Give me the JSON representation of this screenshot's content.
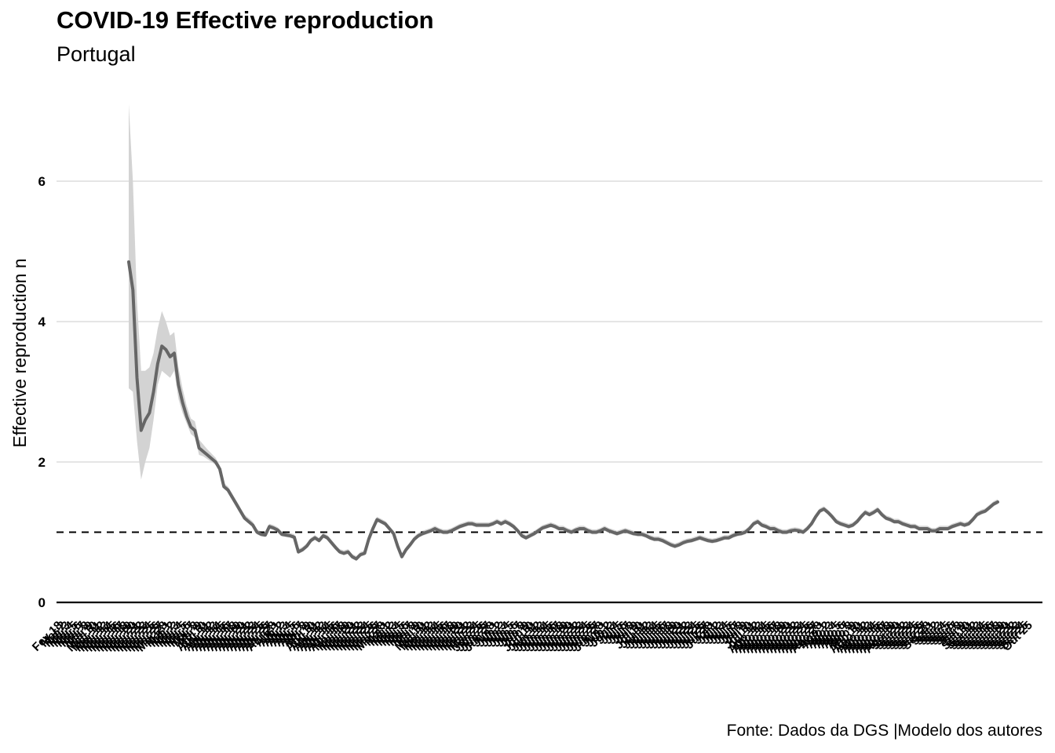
{
  "page": {
    "title": "COVID-19 Effective reproduction",
    "subtitle": "Portugal",
    "caption": "Fonte: Dados da DGS |Modelo dos autores"
  },
  "chart_data": {
    "type": "line",
    "title": "COVID-19 Effective reproduction",
    "subtitle": "Portugal",
    "xlabel": "",
    "ylabel": "Effective reproduction n",
    "ylim": [
      0,
      7.1
    ],
    "yticks": [
      0,
      2,
      4,
      6
    ],
    "grid": "horizontal",
    "reference_line": {
      "y": 1,
      "style": "dashed"
    },
    "x_first_label": "Fev 18",
    "x_last_label": "Out 25",
    "x_tick_count": 250,
    "colors": {
      "line": "#666666",
      "band": "#d3d3d3",
      "grid": "#e5e5e5",
      "axis": "#000000"
    },
    "series": [
      {
        "values": [
          4.85,
          4.45,
          3.2,
          2.45,
          2.6,
          2.7,
          3.0,
          3.4,
          3.65,
          3.6,
          3.5,
          3.55,
          3.1,
          2.85,
          2.65,
          2.5,
          2.45,
          2.2,
          2.15,
          2.1,
          2.05,
          2.0,
          1.9,
          1.65,
          1.6,
          1.5,
          1.4,
          1.3,
          1.2,
          1.15,
          1.1,
          1.0,
          0.97,
          0.96,
          1.08,
          1.06,
          1.03,
          0.97,
          0.96,
          0.95,
          0.93,
          0.72,
          0.75,
          0.8,
          0.88,
          0.92,
          0.88,
          0.95,
          0.92,
          0.85,
          0.78,
          0.72,
          0.7,
          0.72,
          0.65,
          0.62,
          0.68,
          0.7,
          0.9,
          1.05,
          1.18,
          1.15,
          1.12,
          1.05,
          0.98,
          0.8,
          0.65,
          0.75,
          0.82,
          0.9,
          0.95,
          0.98,
          1.0,
          1.02,
          1.05,
          1.02,
          1.0,
          1.0,
          1.02,
          1.05,
          1.08,
          1.1,
          1.12,
          1.12,
          1.1,
          1.1,
          1.1,
          1.1,
          1.12,
          1.15,
          1.12,
          1.15,
          1.12,
          1.08,
          1.02,
          0.95,
          0.92,
          0.95,
          0.98,
          1.02,
          1.06,
          1.08,
          1.1,
          1.08,
          1.05,
          1.05,
          1.02,
          1.0,
          1.03,
          1.05,
          1.05,
          1.02,
          1.0,
          1.0,
          1.02,
          1.05,
          1.02,
          1.0,
          0.98,
          1.0,
          1.02,
          1.0,
          0.98,
          0.97,
          0.97,
          0.95,
          0.92,
          0.9,
          0.9,
          0.88,
          0.85,
          0.82,
          0.8,
          0.82,
          0.85,
          0.87,
          0.88,
          0.9,
          0.92,
          0.9,
          0.88,
          0.87,
          0.88,
          0.9,
          0.92,
          0.92,
          0.95,
          0.97,
          0.98,
          1.0,
          1.05,
          1.12,
          1.15,
          1.1,
          1.08,
          1.05,
          1.05,
          1.02,
          1.0,
          1.0,
          1.02,
          1.03,
          1.02,
          1.0,
          1.05,
          1.12,
          1.22,
          1.3,
          1.33,
          1.28,
          1.22,
          1.15,
          1.12,
          1.1,
          1.08,
          1.1,
          1.15,
          1.22,
          1.28,
          1.25,
          1.28,
          1.32,
          1.25,
          1.2,
          1.18,
          1.15,
          1.15,
          1.12,
          1.1,
          1.08,
          1.08,
          1.05,
          1.05,
          1.05,
          1.02,
          1.02,
          1.05,
          1.05,
          1.05,
          1.08,
          1.1,
          1.12,
          1.1,
          1.12,
          1.18,
          1.25,
          1.28,
          1.3,
          1.35,
          1.4,
          1.43
        ],
        "ci_low": [
          3.05,
          3.0,
          2.3,
          1.75,
          2.0,
          2.2,
          2.6,
          3.1,
          3.3,
          3.25,
          3.2,
          3.3,
          2.9,
          2.7,
          2.55,
          2.4,
          2.35,
          2.1,
          2.08,
          2.04,
          2.0,
          1.96,
          1.86,
          1.62,
          1.57,
          1.47,
          1.37,
          1.27,
          1.17,
          1.12,
          1.07,
          0.97,
          0.94,
          0.93,
          1.05,
          1.03,
          1.0,
          0.94,
          0.93,
          0.92,
          0.9,
          0.69,
          0.72,
          0.77,
          0.85,
          0.89,
          0.85,
          0.92,
          0.89,
          0.82,
          0.75,
          0.69,
          0.67,
          0.69,
          0.62,
          0.59,
          0.65,
          0.67,
          0.87,
          1.02,
          1.15,
          1.12,
          1.09,
          1.02,
          0.95,
          0.77,
          0.62,
          0.72,
          0.79,
          0.87,
          0.92,
          0.95,
          0.97,
          0.99,
          1.02,
          0.99,
          0.97,
          0.97,
          0.99,
          1.02,
          1.05,
          1.07,
          1.09,
          1.09,
          1.07,
          1.07,
          1.07,
          1.07,
          1.09,
          1.12,
          1.09,
          1.12,
          1.09,
          1.05,
          0.99,
          0.92,
          0.89,
          0.92,
          0.95,
          0.99,
          1.03,
          1.05,
          1.07,
          1.05,
          1.02,
          1.02,
          0.99,
          0.97,
          1.0,
          1.02,
          1.02,
          0.99,
          0.97,
          0.97,
          0.99,
          1.02,
          0.99,
          0.97,
          0.95,
          0.97,
          0.99,
          0.97,
          0.95,
          0.94,
          0.94,
          0.92,
          0.89,
          0.87,
          0.87,
          0.85,
          0.82,
          0.79,
          0.77,
          0.79,
          0.82,
          0.84,
          0.85,
          0.87,
          0.89,
          0.87,
          0.85,
          0.84,
          0.85,
          0.87,
          0.89,
          0.89,
          0.92,
          0.94,
          0.95,
          0.97,
          1.02,
          1.09,
          1.12,
          1.07,
          1.05,
          1.02,
          1.02,
          0.99,
          0.97,
          0.97,
          0.99,
          1.0,
          0.99,
          0.97,
          1.02,
          1.09,
          1.19,
          1.27,
          1.3,
          1.25,
          1.19,
          1.12,
          1.09,
          1.07,
          1.05,
          1.07,
          1.12,
          1.19,
          1.25,
          1.22,
          1.25,
          1.29,
          1.22,
          1.17,
          1.15,
          1.12,
          1.12,
          1.09,
          1.07,
          1.05,
          1.05,
          1.02,
          1.02,
          1.02,
          0.99,
          0.99,
          1.02,
          1.02,
          1.02,
          1.05,
          1.07,
          1.09,
          1.07,
          1.09,
          1.15,
          1.22,
          1.25,
          1.27,
          1.32,
          1.37,
          1.4
        ],
        "ci_high": [
          7.1,
          6.0,
          4.3,
          3.3,
          3.3,
          3.35,
          3.55,
          3.9,
          4.15,
          4.0,
          3.8,
          3.85,
          3.35,
          3.05,
          2.8,
          2.62,
          2.58,
          2.32,
          2.25,
          2.18,
          2.12,
          2.06,
          1.95,
          1.7,
          1.65,
          1.55,
          1.45,
          1.35,
          1.25,
          1.2,
          1.15,
          1.04,
          1.01,
          1.0,
          1.12,
          1.1,
          1.07,
          1.01,
          1.0,
          0.99,
          0.97,
          0.76,
          0.79,
          0.84,
          0.92,
          0.96,
          0.92,
          0.99,
          0.96,
          0.89,
          0.82,
          0.76,
          0.74,
          0.76,
          0.69,
          0.66,
          0.72,
          0.74,
          0.94,
          1.09,
          1.22,
          1.19,
          1.16,
          1.09,
          1.02,
          0.84,
          0.69,
          0.79,
          0.86,
          0.94,
          0.99,
          1.02,
          1.04,
          1.06,
          1.09,
          1.06,
          1.04,
          1.04,
          1.06,
          1.09,
          1.12,
          1.14,
          1.16,
          1.16,
          1.14,
          1.14,
          1.14,
          1.14,
          1.16,
          1.19,
          1.16,
          1.19,
          1.16,
          1.12,
          1.06,
          0.99,
          0.96,
          0.99,
          1.02,
          1.06,
          1.1,
          1.12,
          1.14,
          1.12,
          1.09,
          1.09,
          1.06,
          1.04,
          1.07,
          1.09,
          1.09,
          1.06,
          1.04,
          1.04,
          1.06,
          1.09,
          1.06,
          1.04,
          1.02,
          1.04,
          1.06,
          1.04,
          1.02,
          1.01,
          1.01,
          0.99,
          0.96,
          0.94,
          0.94,
          0.92,
          0.89,
          0.86,
          0.84,
          0.86,
          0.89,
          0.91,
          0.92,
          0.94,
          0.96,
          0.94,
          0.92,
          0.91,
          0.92,
          0.94,
          0.96,
          0.96,
          0.99,
          1.01,
          1.02,
          1.04,
          1.09,
          1.16,
          1.19,
          1.14,
          1.12,
          1.09,
          1.09,
          1.06,
          1.04,
          1.04,
          1.06,
          1.07,
          1.06,
          1.04,
          1.09,
          1.16,
          1.26,
          1.34,
          1.37,
          1.32,
          1.26,
          1.19,
          1.16,
          1.14,
          1.12,
          1.14,
          1.19,
          1.26,
          1.32,
          1.29,
          1.32,
          1.36,
          1.29,
          1.24,
          1.22,
          1.19,
          1.19,
          1.16,
          1.14,
          1.12,
          1.12,
          1.09,
          1.09,
          1.09,
          1.06,
          1.06,
          1.09,
          1.09,
          1.09,
          1.12,
          1.14,
          1.16,
          1.14,
          1.16,
          1.22,
          1.29,
          1.32,
          1.34,
          1.39,
          1.44,
          1.47
        ]
      }
    ]
  }
}
